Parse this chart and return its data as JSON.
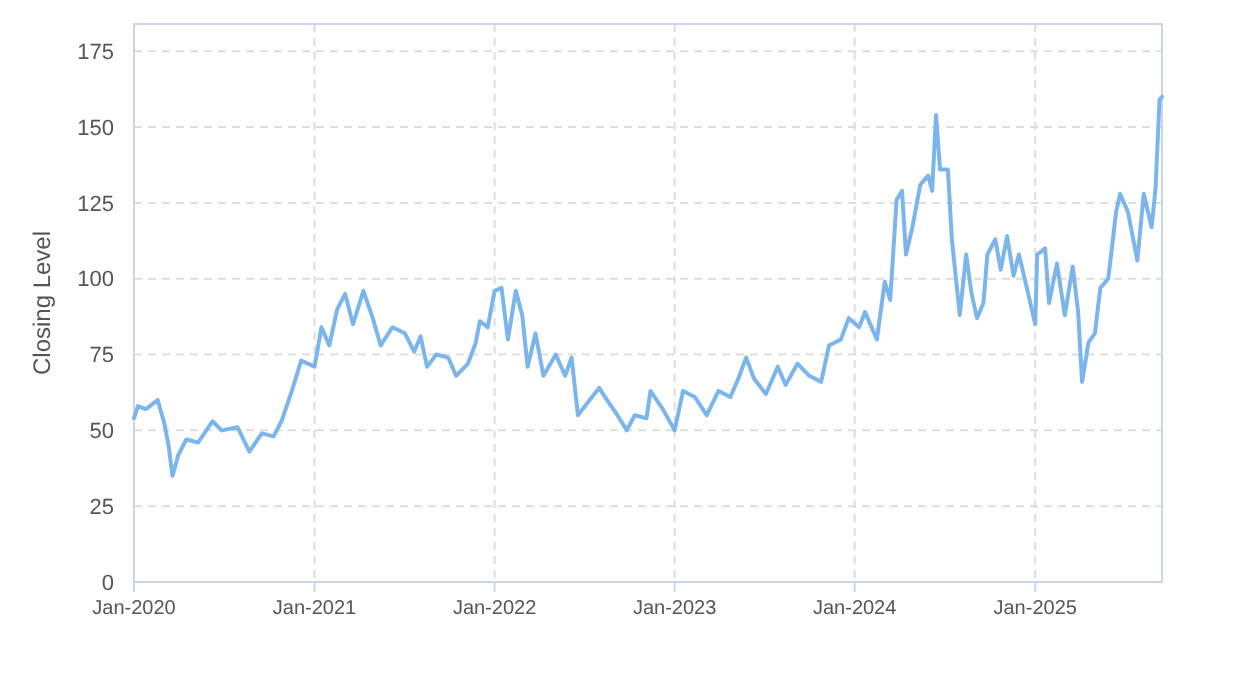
{
  "chart_data": {
    "type": "line",
    "ylabel": "Closing Level",
    "x": [
      "2020-01-01",
      "2020-01-09",
      "2020-01-25",
      "2020-02-18",
      "2020-03-03",
      "2020-03-11",
      "2020-03-19",
      "2020-03-31",
      "2020-04-16",
      "2020-05-10",
      "2020-06-08",
      "2020-06-27",
      "2020-07-29",
      "2020-08-22",
      "2020-09-16",
      "2020-10-10",
      "2020-10-26",
      "2020-11-16",
      "2020-12-05",
      "2021-01-01",
      "2021-01-15",
      "2021-01-31",
      "2021-02-16",
      "2021-03-04",
      "2021-03-20",
      "2021-04-10",
      "2021-04-29",
      "2021-05-15",
      "2021-06-08",
      "2021-07-03",
      "2021-07-22",
      "2021-08-04",
      "2021-08-17",
      "2021-09-05",
      "2021-09-29",
      "2021-10-15",
      "2021-11-08",
      "2021-11-24",
      "2021-12-02",
      "2021-12-18",
      "2022-01-01",
      "2022-01-15",
      "2022-01-28",
      "2022-02-13",
      "2022-02-26",
      "2022-03-09",
      "2022-03-25",
      "2022-04-10",
      "2022-05-05",
      "2022-05-24",
      "2022-06-06",
      "2022-06-19",
      "2022-07-08",
      "2022-08-01",
      "2022-08-17",
      "2022-09-07",
      "2022-09-26",
      "2022-10-12",
      "2022-11-05",
      "2022-11-13",
      "2022-12-08",
      "2023-01-01",
      "2023-01-18",
      "2023-02-11",
      "2023-03-07",
      "2023-03-31",
      "2023-04-24",
      "2023-05-10",
      "2023-05-26",
      "2023-06-11",
      "2023-07-05",
      "2023-07-29",
      "2023-08-14",
      "2023-09-07",
      "2023-10-01",
      "2023-10-25",
      "2023-11-10",
      "2023-12-04",
      "2023-12-20",
      "2024-01-10",
      "2024-01-22",
      "2024-02-15",
      "2024-03-02",
      "2024-03-13",
      "2024-03-26",
      "2024-04-06",
      "2024-04-14",
      "2024-04-27",
      "2024-05-13",
      "2024-05-29",
      "2024-06-06",
      "2024-06-14",
      "2024-06-22",
      "2024-07-08",
      "2024-07-16",
      "2024-08-01",
      "2024-08-14",
      "2024-08-25",
      "2024-09-05",
      "2024-09-18",
      "2024-09-26",
      "2024-10-12",
      "2024-10-23",
      "2024-11-05",
      "2024-11-18",
      "2024-11-29",
      "2024-12-15",
      "2025-01-01",
      "2025-01-05",
      "2025-01-21",
      "2025-01-29",
      "2025-02-14",
      "2025-03-02",
      "2025-03-18",
      "2025-03-29",
      "2025-04-06",
      "2025-04-19",
      "2025-05-02",
      "2025-05-13",
      "2025-05-29",
      "2025-06-14",
      "2025-06-22",
      "2025-07-08",
      "2025-07-27",
      "2025-08-09",
      "2025-08-25",
      "2025-09-02",
      "2025-09-10",
      "2025-09-15"
    ],
    "series": [
      {
        "color": "#7cb5ec",
        "values": [
          54,
          58,
          57,
          60,
          52,
          45,
          35,
          42,
          47,
          46,
          53,
          50,
          51,
          43,
          49,
          48,
          53,
          63,
          73,
          71,
          84,
          78,
          90,
          95,
          85,
          96,
          87,
          78,
          84,
          82,
          76,
          81,
          71,
          75,
          74,
          68,
          72,
          79,
          86,
          84,
          96,
          97,
          80,
          96,
          88,
          71,
          82,
          68,
          75,
          68,
          74,
          55,
          59,
          64,
          60,
          55,
          50,
          55,
          54,
          63,
          57,
          50,
          63,
          61,
          55,
          63,
          61,
          67,
          74,
          67,
          62,
          71,
          65,
          72,
          68,
          66,
          78,
          80,
          87,
          84,
          89,
          80,
          99,
          93,
          126,
          129,
          108,
          117,
          131,
          134,
          129,
          154,
          136,
          136,
          113,
          88,
          108,
          95,
          87,
          92,
          108,
          113,
          103,
          114,
          101,
          108,
          97,
          85,
          108,
          110,
          92,
          105,
          88,
          104,
          89,
          66,
          79,
          82,
          97,
          100,
          122,
          128,
          122,
          106,
          128,
          117,
          130,
          159,
          160
        ]
      }
    ],
    "xlim": [
      "2020-01-01",
      "2025-09-15"
    ],
    "xticks": [
      {
        "value": "2020-01-01",
        "label": "Jan-2020"
      },
      {
        "value": "2021-01-01",
        "label": "Jan-2021"
      },
      {
        "value": "2022-01-01",
        "label": "Jan-2022"
      },
      {
        "value": "2023-01-01",
        "label": "Jan-2023"
      },
      {
        "value": "2024-01-01",
        "label": "Jan-2024"
      },
      {
        "value": "2025-01-01",
        "label": "Jan-2025"
      }
    ],
    "ylim": [
      0,
      184
    ],
    "yticks": [
      0,
      25,
      50,
      75,
      100,
      125,
      150,
      175
    ],
    "grid": true,
    "marker": "none",
    "line_style": "solid"
  }
}
